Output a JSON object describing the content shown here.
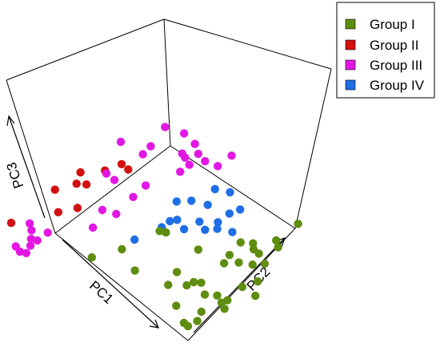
{
  "chart_data": {
    "type": "scatter",
    "projection": "3d",
    "title": "",
    "xlabel": "PC1",
    "ylabel": "PC2",
    "zlabel": "PC3",
    "grid": false,
    "legend_position": "top-right",
    "series": [
      {
        "name": "Group I",
        "color": "#5f8d0f",
        "points": [
          [
            60,
            55
          ],
          [
            84,
            95
          ],
          [
            80,
            80
          ],
          [
            81,
            66
          ],
          [
            76,
            59
          ],
          [
            74,
            35
          ],
          [
            84,
            80
          ],
          [
            87,
            71
          ],
          [
            91,
            77
          ],
          [
            97,
            64
          ],
          [
            94,
            36
          ],
          [
            88,
            92
          ],
          [
            84,
            114
          ],
          [
            77,
            38
          ],
          [
            84,
            33
          ],
          [
            73,
            30
          ],
          [
            79,
            14
          ],
          [
            95,
            40
          ],
          [
            94,
            54
          ],
          [
            63,
            33
          ],
          [
            103,
            55
          ],
          [
            89,
            38
          ],
          [
            94,
            15
          ],
          [
            91,
            22
          ],
          [
            98,
            34
          ],
          [
            47,
            15
          ],
          [
            66,
            22
          ],
          [
            25,
            3
          ],
          [
            37,
            48
          ],
          [
            32,
            21
          ],
          [
            40,
            50
          ],
          [
            72,
            78
          ],
          [
            74,
            66
          ],
          [
            77,
            83
          ],
          [
            90,
            8
          ],
          [
            93,
            8
          ]
        ]
      },
      {
        "name": "Group II",
        "color": "#d40f0f",
        "points": [
          [
            -12,
            57
          ],
          [
            -16,
            37
          ],
          [
            -12,
            41
          ],
          [
            -4,
            68
          ],
          [
            -4,
            24
          ],
          [
            -9,
            13
          ],
          [
            -21,
            24
          ],
          [
            -21,
            -14
          ],
          [
            -9,
            68
          ],
          [
            -20,
            45
          ]
        ]
      },
      {
        "name": "Group III",
        "color": "#e317e3",
        "points": [
          [
            8,
            112
          ],
          [
            -1,
            113
          ],
          [
            8,
            101
          ],
          [
            -6,
            83
          ],
          [
            -11,
            108
          ],
          [
            -7,
            91
          ],
          [
            16,
            90
          ],
          [
            16,
            98
          ],
          [
            10,
            67
          ],
          [
            11,
            55
          ],
          [
            -20,
            80
          ],
          [
            11,
            100
          ],
          [
            20,
            107
          ],
          [
            14,
            108
          ],
          [
            27,
            110
          ],
          [
            27,
            122
          ],
          [
            -10,
            56
          ],
          [
            -4,
            56
          ],
          [
            6,
            34
          ],
          [
            13,
            38
          ],
          [
            11,
            20
          ],
          [
            -3,
            -3
          ],
          [
            -3,
            -12
          ],
          [
            -3,
            -18
          ],
          [
            -10,
            -9
          ],
          [
            -6,
            -14
          ],
          [
            -8,
            -25
          ],
          [
            -14,
            -6
          ],
          [
            -1,
            -24
          ],
          [
            -4,
            -26
          ]
        ]
      },
      {
        "name": "Group IV",
        "color": "#1f6ee6",
        "points": [
          [
            34,
            79
          ],
          [
            42,
            84
          ],
          [
            54,
            79
          ],
          [
            37,
            96
          ],
          [
            47,
            71
          ],
          [
            53,
            69
          ],
          [
            64,
            80
          ],
          [
            54,
            89
          ],
          [
            45,
            60
          ],
          [
            38,
            62
          ],
          [
            36,
            58
          ],
          [
            29,
            72
          ],
          [
            36,
            51
          ],
          [
            32,
            32
          ],
          [
            57,
            75
          ],
          [
            44,
            101
          ],
          [
            56,
            96
          ]
        ]
      }
    ]
  },
  "legend": {
    "items": [
      {
        "label": "Group I",
        "color": "#5f8d0f"
      },
      {
        "label": "Group II",
        "color": "#d40f0f"
      },
      {
        "label": "Group III",
        "color": "#e317e3"
      },
      {
        "label": "Group IV",
        "color": "#1f6ee6"
      }
    ]
  }
}
